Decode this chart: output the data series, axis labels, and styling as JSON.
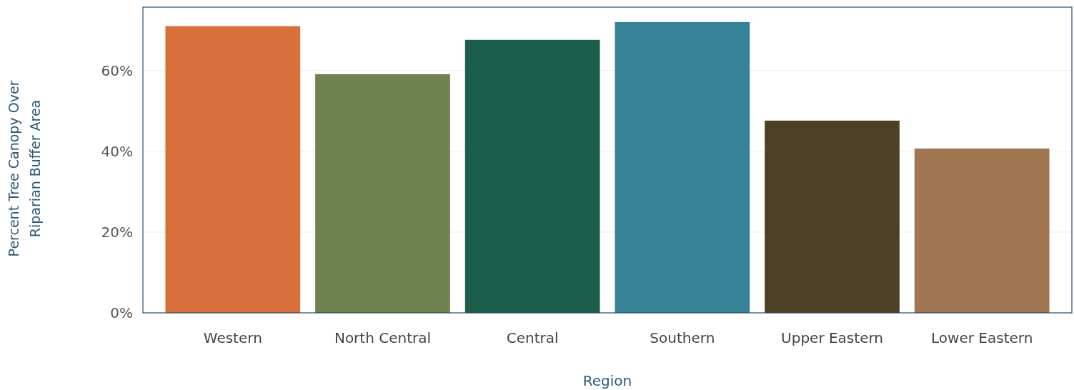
{
  "chart_data": {
    "type": "bar",
    "xlabel": "Region",
    "ylabel": "Percent Tree Canopy Over Riparian Buffer Area",
    "categories": [
      "Western",
      "North Central",
      "Central",
      "Southern",
      "Upper Eastern",
      "Lower Eastern"
    ],
    "values": [
      71,
      59.1,
      67.6,
      72,
      47.6,
      40.7
    ],
    "colors": [
      "#d96f3a",
      "#6f814e",
      "#1b5e4c",
      "#368296",
      "#4e4026",
      "#a07552"
    ],
    "ylim": [
      0,
      75.7
    ],
    "yticks": [
      {
        "value": 0,
        "label": "0%"
      },
      {
        "value": 20,
        "label": "20%"
      },
      {
        "value": 40,
        "label": "40%"
      },
      {
        "value": 60,
        "label": "60%"
      }
    ],
    "grid": "y"
  }
}
